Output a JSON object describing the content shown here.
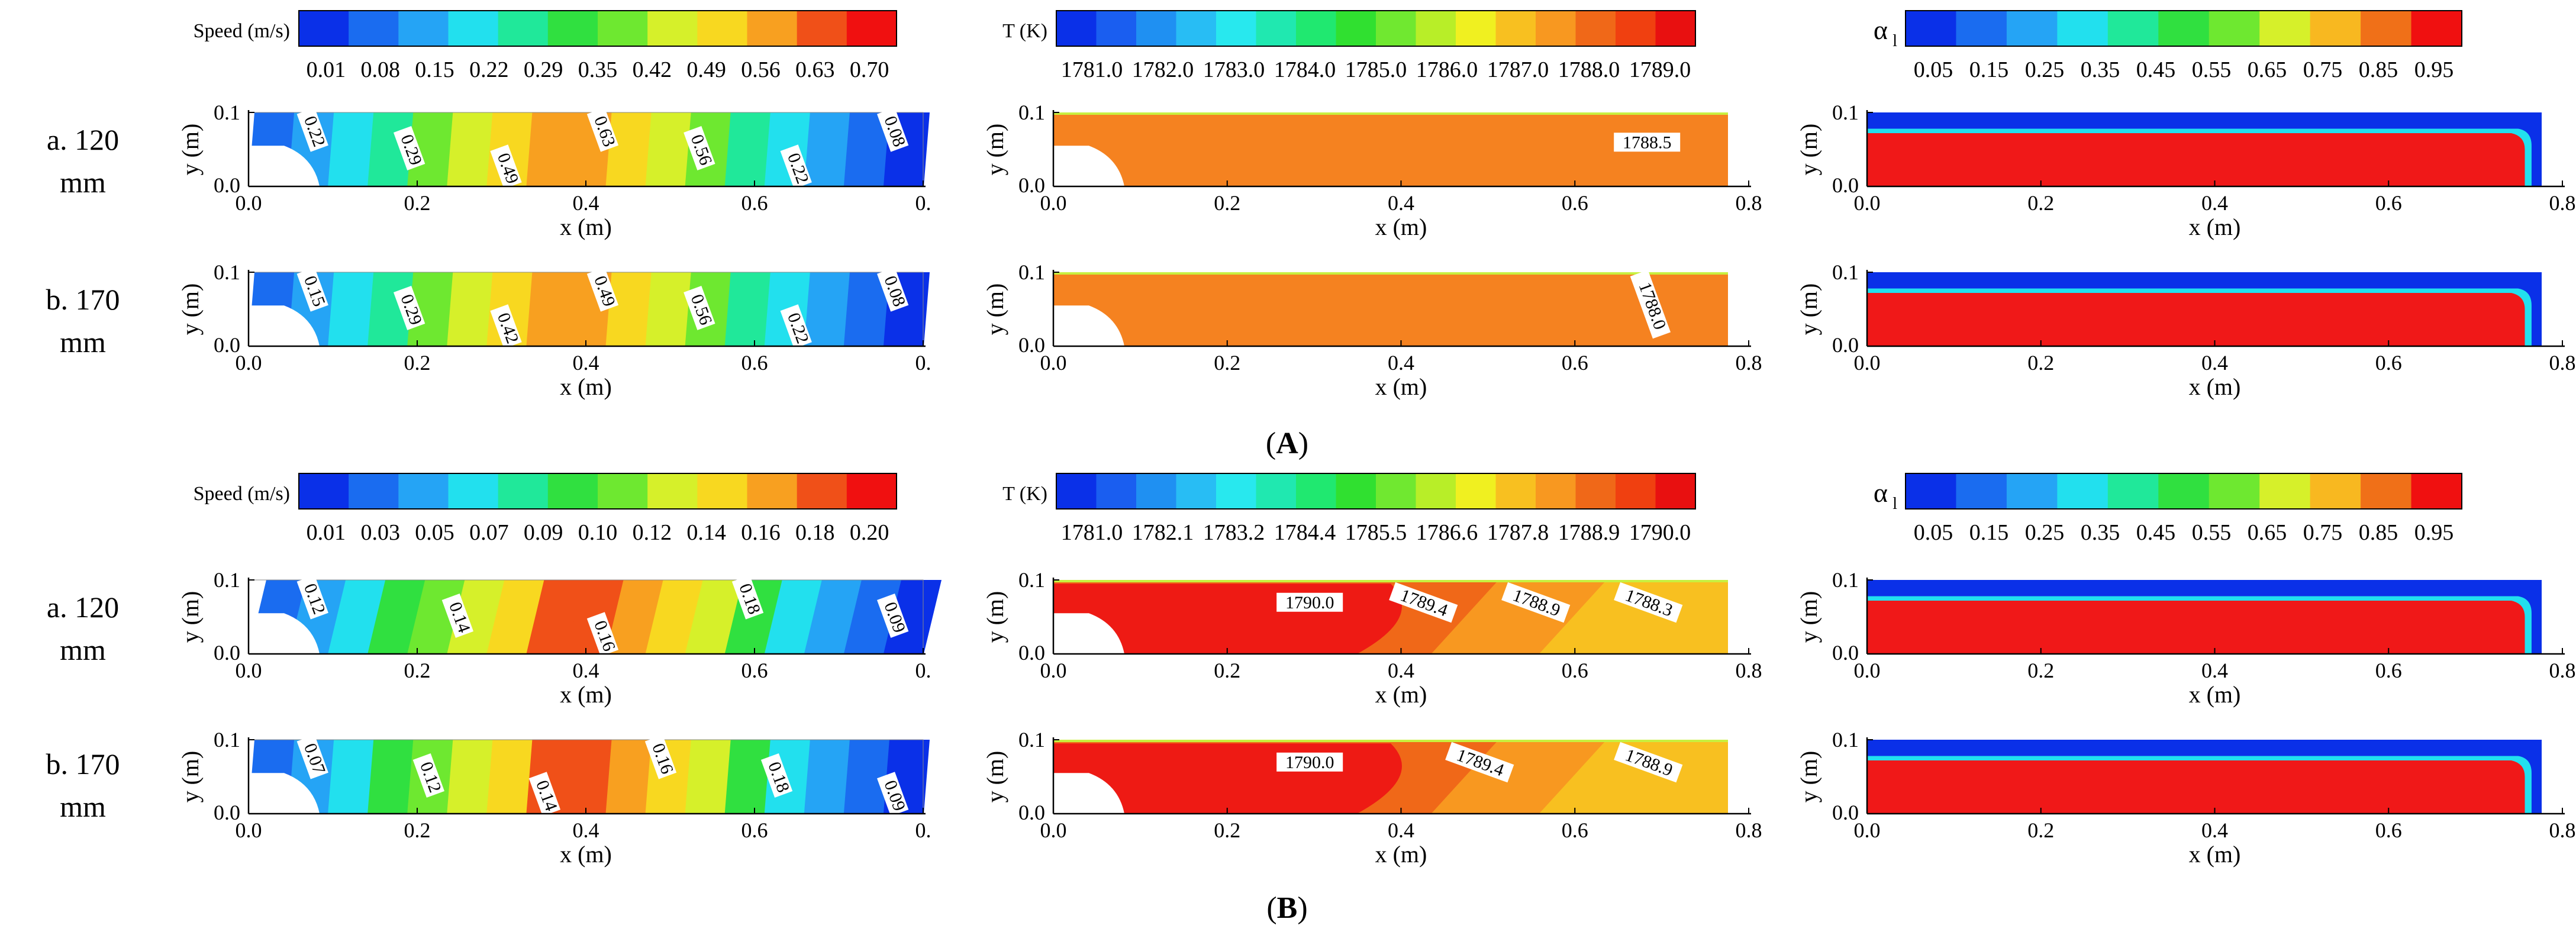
{
  "sections": [
    {
      "label": "A",
      "rows": [
        {
          "case": "a. 120",
          "unit": "mm"
        },
        {
          "case": "b. 170",
          "unit": "mm"
        }
      ],
      "legends": {
        "speed": {
          "title": "Speed (m/s)",
          "ticks": [
            "0.01",
            "0.08",
            "0.15",
            "0.22",
            "0.29",
            "0.35",
            "0.42",
            "0.49",
            "0.56",
            "0.63",
            "0.70"
          ]
        },
        "temperature": {
          "title": "T (K)",
          "ticks": [
            "1781.0",
            "1782.0",
            "1783.0",
            "1784.0",
            "1785.0",
            "1786.0",
            "1787.0",
            "1788.0",
            "1789.0"
          ]
        },
        "alpha": {
          "title": "αl",
          "ticks": [
            "0.05",
            "0.15",
            "0.25",
            "0.35",
            "0.45",
            "0.55",
            "0.65",
            "0.75",
            "0.85",
            "0.95"
          ]
        }
      },
      "contours": [
        {
          "speed": [
            "0.22",
            "0.29",
            "0.49",
            "0.63",
            "0.56",
            "0.22",
            "0.08"
          ],
          "temperature": [
            "1788.5"
          ]
        },
        {
          "speed": [
            "0.15",
            "0.29",
            "0.42",
            "0.49",
            "0.56",
            "0.22",
            "0.08"
          ],
          "temperature": [
            "1788.0"
          ]
        }
      ]
    },
    {
      "label": "B",
      "rows": [
        {
          "case": "a. 120",
          "unit": "mm"
        },
        {
          "case": "b. 170",
          "unit": "mm"
        }
      ],
      "legends": {
        "speed": {
          "title": "Speed (m/s)",
          "ticks": [
            "0.01",
            "0.03",
            "0.05",
            "0.07",
            "0.09",
            "0.10",
            "0.12",
            "0.14",
            "0.16",
            "0.18",
            "0.20"
          ]
        },
        "temperature": {
          "title": "T (K)",
          "ticks": [
            "1781.0",
            "1782.1",
            "1783.2",
            "1784.4",
            "1785.5",
            "1786.6",
            "1787.8",
            "1788.9",
            "1790.0"
          ]
        },
        "alpha": {
          "title": "αl",
          "ticks": [
            "0.05",
            "0.15",
            "0.25",
            "0.35",
            "0.45",
            "0.55",
            "0.65",
            "0.75",
            "0.85",
            "0.95"
          ]
        }
      },
      "contours": [
        {
          "speed": [
            "0.12",
            "0.14",
            "0.16",
            "0.18",
            "0.09"
          ],
          "temperature": [
            "1790.0",
            "1789.4",
            "1788.9",
            "1788.3"
          ]
        },
        {
          "speed": [
            "0.07",
            "0.12",
            "0.14",
            "0.16",
            "0.18",
            "0.09"
          ],
          "temperature": [
            "1790.0",
            "1789.4",
            "1788.9"
          ]
        }
      ]
    }
  ],
  "axes": {
    "xlabel": "x (m)",
    "ylabel": "y (m)",
    "yticks": [
      "0.0",
      "0.1"
    ],
    "xticks_speed": [
      "0.0",
      "0.2",
      "0.4",
      "0.6",
      "0."
    ],
    "xticks": [
      "0.0",
      "0.2",
      "0.4",
      "0.6",
      "0.8"
    ]
  },
  "colors": {
    "speed_scale": [
      "#0a30e8",
      "#1a6cf0",
      "#25a4f5",
      "#22e0ee",
      "#20e89a",
      "#30e040",
      "#6ee830",
      "#d6f02a",
      "#f8d820",
      "#f8a020",
      "#f05018",
      "#f01010"
    ],
    "temp_scale": [
      "#0a30e8",
      "#1a5ef0",
      "#1f90f2",
      "#28bdf4",
      "#28e8ee",
      "#20e8b0",
      "#20e870",
      "#30e030",
      "#70e830",
      "#b8ee28",
      "#f0f020",
      "#f8c020",
      "#f89820",
      "#f06818",
      "#f04010",
      "#e81010"
    ],
    "alpha_scale": [
      "#0a30e8",
      "#1a6cf0",
      "#25a4f5",
      "#22e0ee",
      "#20e89a",
      "#30e040",
      "#6ee830",
      "#d6f02a",
      "#f8b820",
      "#f07018",
      "#f01010"
    ],
    "molten": "#f01818",
    "orange": "#f58220",
    "gas": "#0a30e8"
  }
}
